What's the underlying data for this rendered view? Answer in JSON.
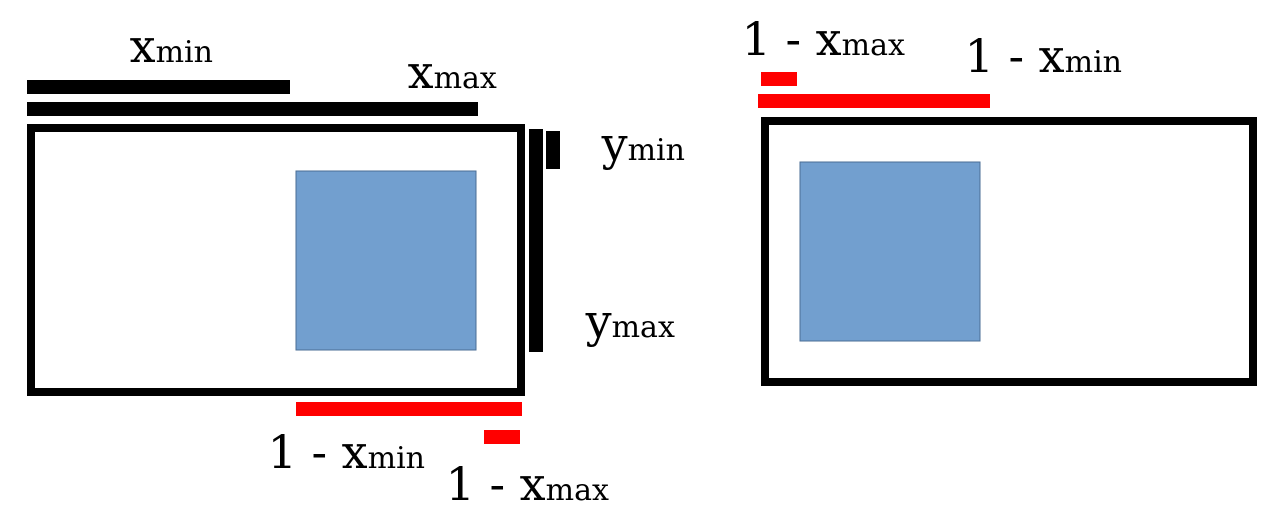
{
  "left_panel": {
    "labels": {
      "xmin_top": {
        "base": "x",
        "sub": "min"
      },
      "xmax_top": {
        "base": "x",
        "sub": "max"
      },
      "ymin": {
        "base": "y",
        "sub": "min"
      },
      "ymax": {
        "base": "y",
        "sub": "max"
      },
      "one_minus_xmin": {
        "prefix": "1 - ",
        "base": "x",
        "sub": "min"
      },
      "one_minus_xmax": {
        "prefix": "1 - ",
        "base": "x",
        "sub": "max"
      }
    }
  },
  "right_panel": {
    "labels": {
      "one_minus_xmax": {
        "prefix": "1 - ",
        "base": "x",
        "sub": "max"
      },
      "one_minus_xmin": {
        "prefix": "1 - ",
        "base": "x",
        "sub": "min"
      }
    }
  },
  "colors": {
    "frame": "#000000",
    "original_measure": "#000000",
    "flipped_measure": "#ff0000",
    "box_fill": "#729fcf",
    "box_stroke": "#4a6d94"
  }
}
